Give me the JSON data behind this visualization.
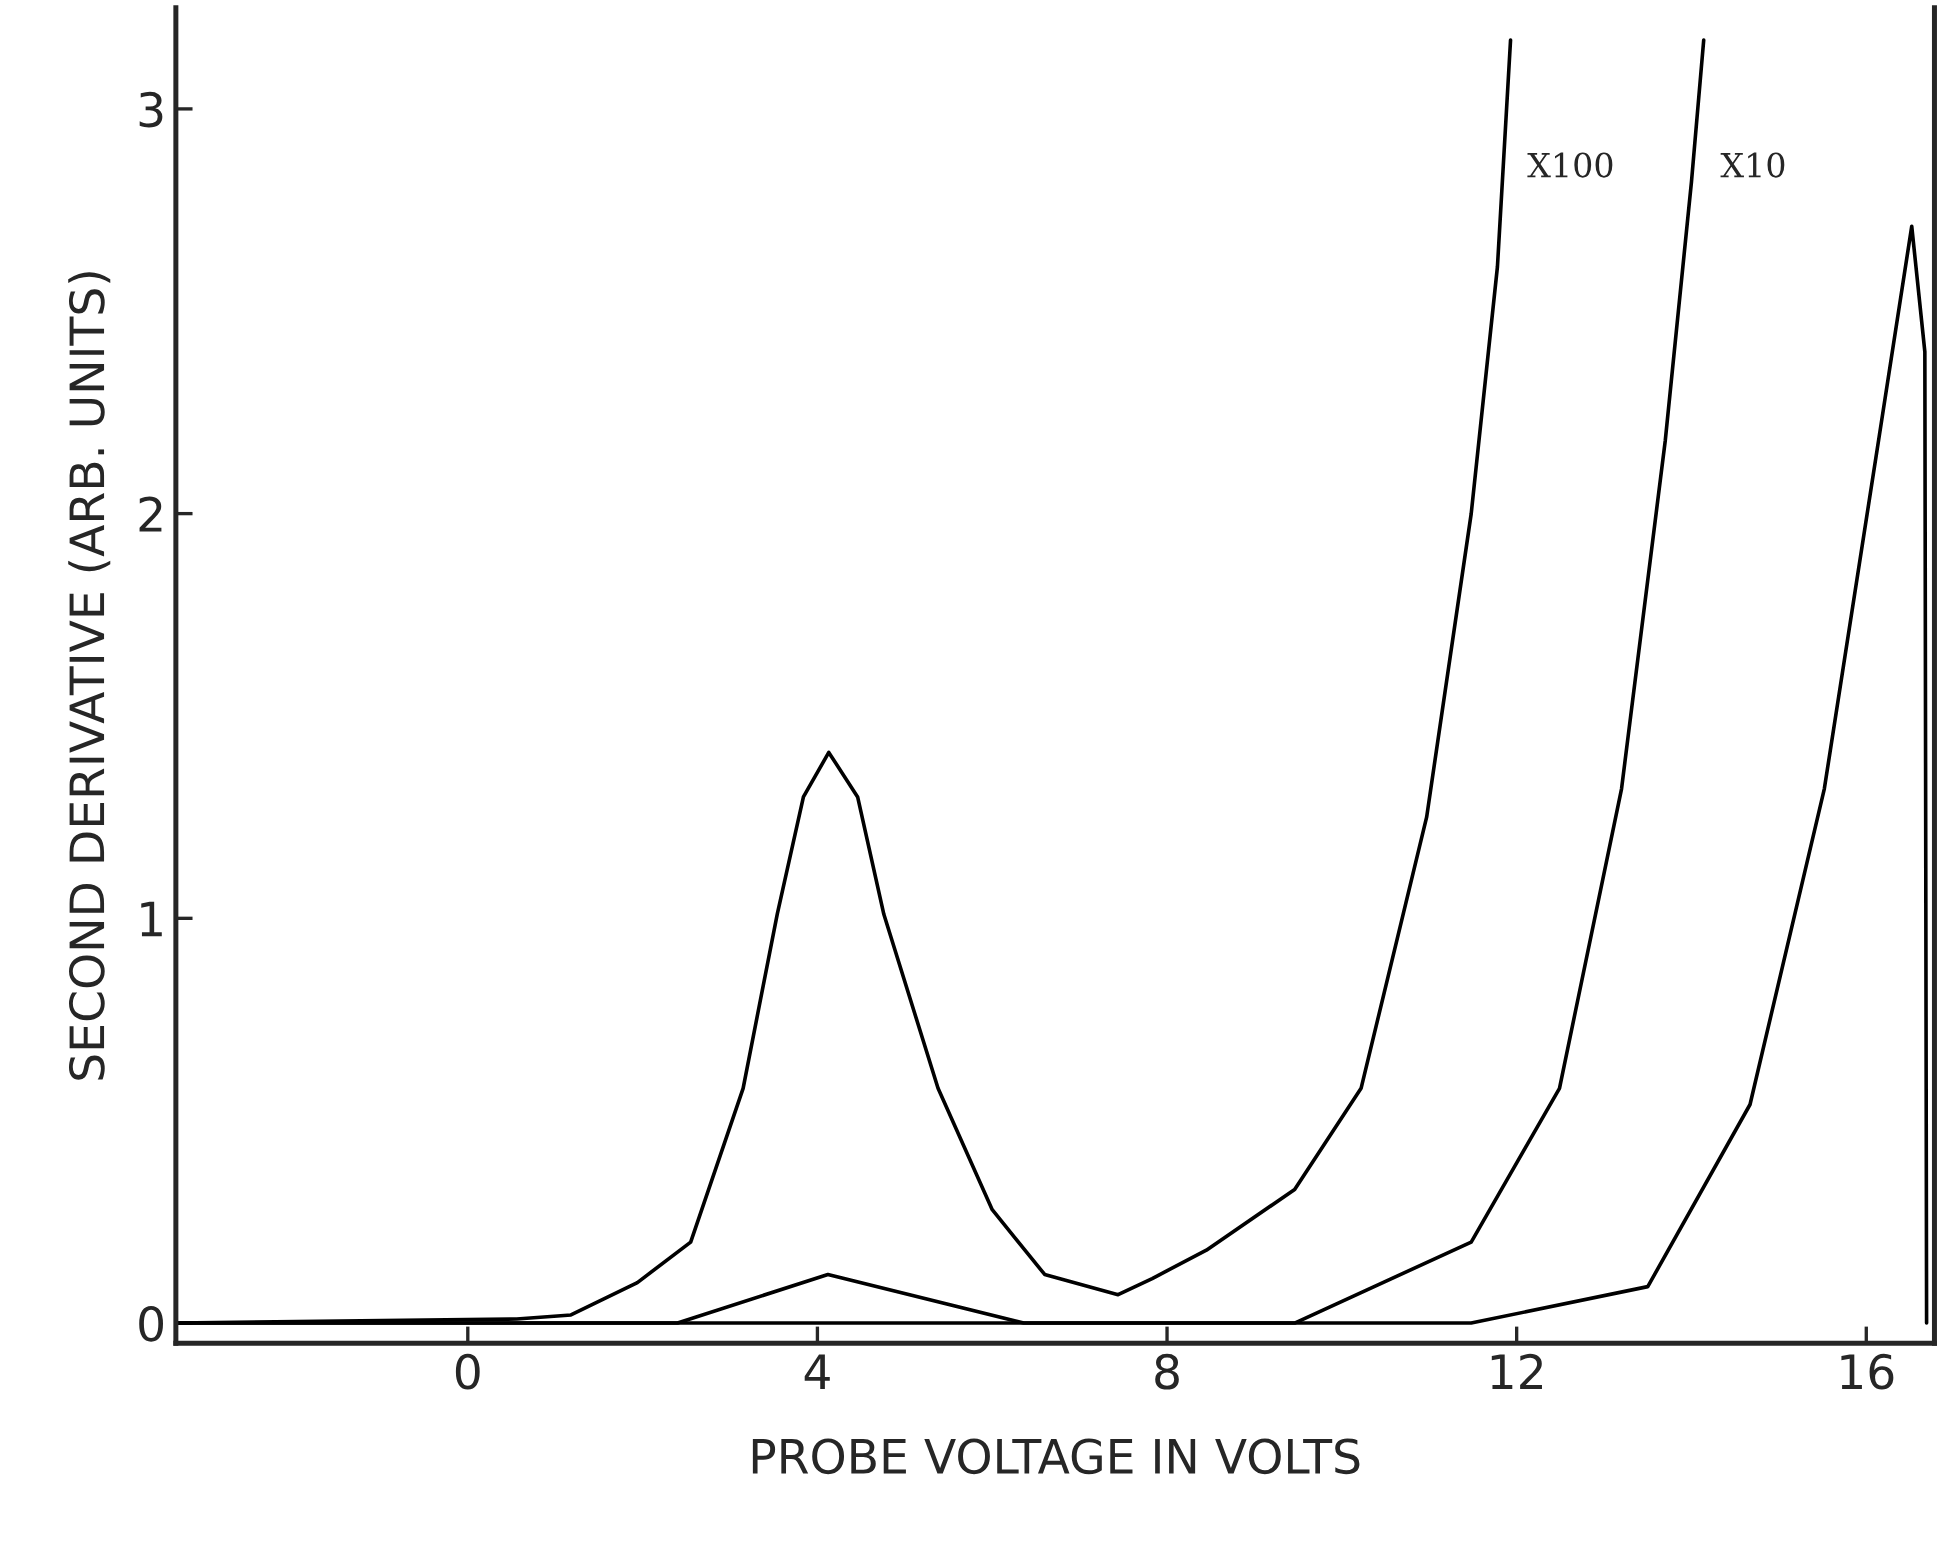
{
  "chart_data": {
    "type": "line",
    "xlabel": "PROBE VOLTAGE IN VOLTS",
    "ylabel": "SECOND DERIVATIVE (ARB. UNITS)",
    "series": [
      {
        "color": "#000000",
        "x": [
          -3.34,
          0.56,
          1.18,
          1.94,
          2.55,
          3.15,
          3.54,
          3.84,
          4.13,
          4.46,
          4.76,
          5.38,
          6.0,
          6.6,
          7.44,
          7.83,
          8.45,
          9.46,
          10.22,
          10.97,
          11.48,
          11.78,
          11.93
        ],
        "values": [
          0,
          0.01,
          0.02,
          0.1,
          0.2,
          0.58,
          1.01,
          1.3,
          1.41,
          1.3,
          1.01,
          0.58,
          0.28,
          0.12,
          0.07,
          0.11,
          0.18,
          0.33,
          0.58,
          1.25,
          2.0,
          2.61,
          3.17
        ]
      },
      {
        "color": "#000000",
        "x": [
          -3.34,
          2.4,
          4.12,
          6.36,
          9.46,
          11.48,
          12.49,
          13.2,
          13.7,
          14.0,
          14.14
        ],
        "values": [
          0,
          0,
          0.12,
          0,
          0,
          0.2,
          0.58,
          1.32,
          2.18,
          2.82,
          3.17
        ]
      },
      {
        "color": "#000000",
        "x": [
          -3.34,
          11.48,
          13.5,
          14.67,
          15.52,
          16.14,
          16.52,
          16.67,
          16.69
        ],
        "values": [
          0,
          0,
          0.09,
          0.54,
          1.32,
          2.18,
          2.71,
          2.4,
          0
        ]
      }
    ],
    "annotations": [
      "X100",
      "X10"
    ],
    "xlim": [
      -3.34,
      16.78
    ],
    "ylim": [
      -0.05,
      3.25
    ],
    "xticks": [
      0,
      4,
      8,
      12,
      16
    ],
    "yticks": [
      0,
      1,
      2,
      3
    ],
    "grid": false,
    "legend": false,
    "marker": "none",
    "line_style": "solid"
  }
}
